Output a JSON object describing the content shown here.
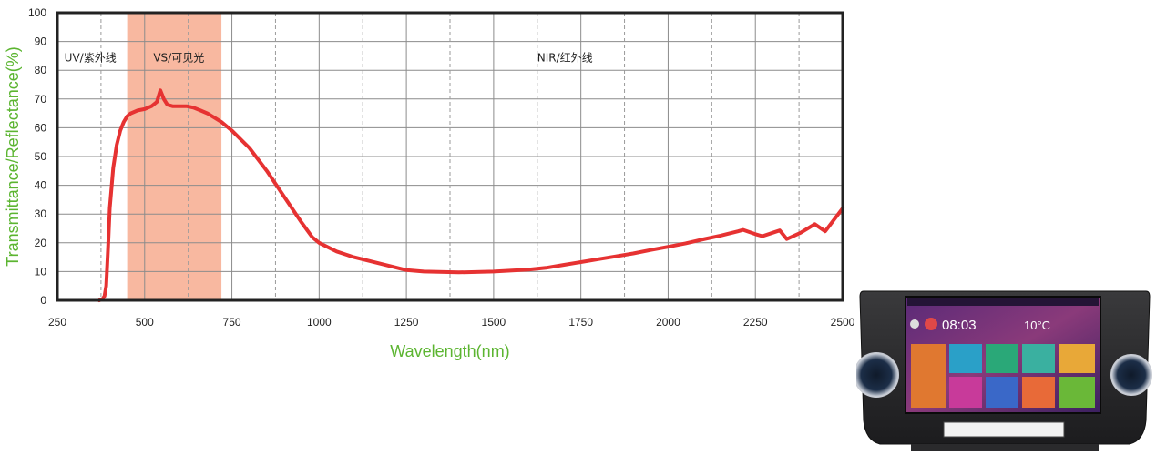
{
  "chart_data": {
    "type": "line",
    "title": "",
    "xlabel": "Wavelength(nm)",
    "ylabel": "Transmittance/Reflectance(%)",
    "xlim": [
      250,
      2500
    ],
    "ylim": [
      0,
      100
    ],
    "x_ticks": [
      250,
      500,
      750,
      1000,
      1250,
      1500,
      1750,
      2000,
      2250,
      2500
    ],
    "y_ticks": [
      0,
      10,
      20,
      30,
      40,
      50,
      60,
      70,
      80,
      90,
      100
    ],
    "grid": true,
    "colors": {
      "line": "#e63232",
      "highlight": "#f8b8a0",
      "axis_label": "#5cb531",
      "frame": "#222222"
    },
    "highlight_band": {
      "x_start": 450,
      "x_end": 720
    },
    "regions": [
      {
        "label": "UV/紫外线",
        "x": 270,
        "y": 83
      },
      {
        "label": "VS/可见光",
        "x": 525,
        "y": 83
      },
      {
        "label": "NIR/红外线",
        "x": 1625,
        "y": 83
      }
    ],
    "series": [
      {
        "x": [
          370,
          380,
          385,
          390,
          395,
          400,
          410,
          420,
          430,
          440,
          450,
          460,
          470,
          480,
          500,
          520,
          535,
          545,
          555,
          565,
          580,
          600,
          620,
          640,
          660,
          680,
          700,
          720,
          750,
          800,
          850,
          900,
          950,
          980,
          1000,
          1050,
          1100,
          1150,
          1200,
          1250,
          1300,
          1400,
          1500,
          1600,
          1650,
          1700,
          1750,
          1800,
          1850,
          1900,
          1950,
          2000,
          2050,
          2100,
          2150,
          2200,
          2215,
          2250,
          2270,
          2300,
          2320,
          2340,
          2380,
          2420,
          2450,
          2500
        ],
        "y": [
          0,
          0.5,
          1.5,
          5,
          18,
          32,
          46,
          54,
          59,
          62,
          64,
          65,
          65.5,
          66,
          66.5,
          67.5,
          69,
          73,
          70,
          68,
          67.5,
          67.5,
          67.5,
          67,
          66,
          65,
          63.5,
          62,
          59,
          53,
          45,
          36,
          27,
          22,
          20,
          17,
          15,
          13.5,
          12,
          10.5,
          10,
          9.7,
          10,
          10.7,
          11.3,
          12.3,
          13.3,
          14.3,
          15.3,
          16.3,
          17.5,
          18.6,
          19.8,
          21.2,
          22.5,
          24,
          24.5,
          23,
          22.3,
          23.5,
          24.3,
          21.3,
          23.5,
          26.5,
          24,
          32
        ]
      }
    ]
  },
  "device_image": {
    "clock": "08:03",
    "temperature": "10°C"
  }
}
